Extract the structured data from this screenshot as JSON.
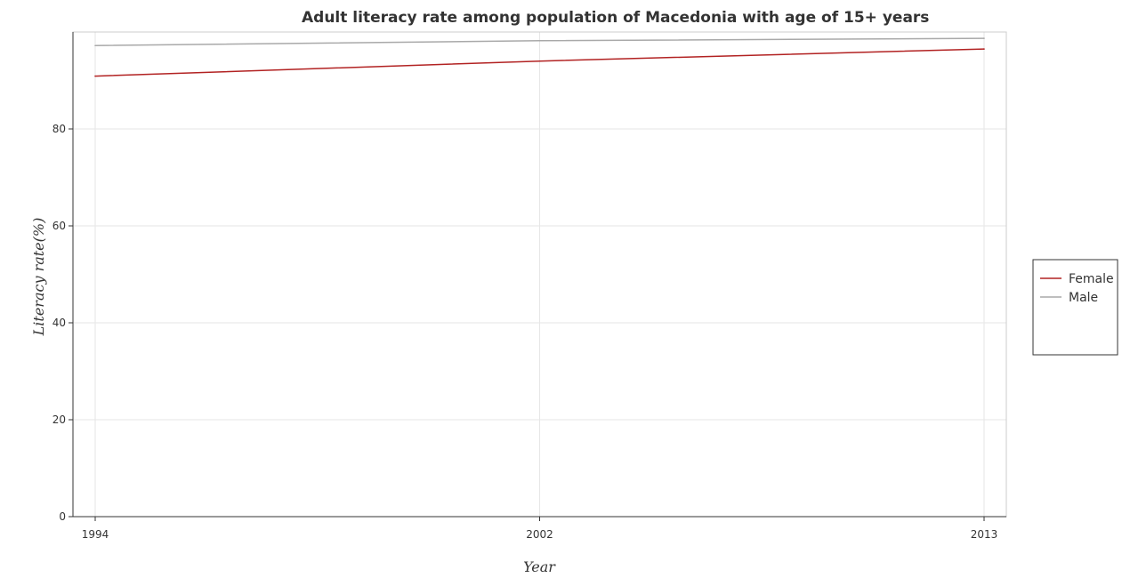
{
  "chart_data": {
    "type": "line",
    "title": "Adult literacy rate among population of Macedonia with age of 15+ years",
    "xlabel": "Year",
    "ylabel": "Literacy rate(%)",
    "categories": [
      "1994",
      "2002",
      "2013"
    ],
    "ylim": [
      0,
      100
    ],
    "yticks": [
      0,
      20,
      40,
      60,
      80
    ],
    "grid": true,
    "legend_position": "right",
    "series": [
      {
        "name": "Female",
        "color": "#b22222",
        "values": [
          90.9,
          94.0,
          96.5
        ]
      },
      {
        "name": "Male",
        "color": "#a9a9a9",
        "values": [
          97.2,
          98.2,
          98.7
        ]
      }
    ]
  }
}
